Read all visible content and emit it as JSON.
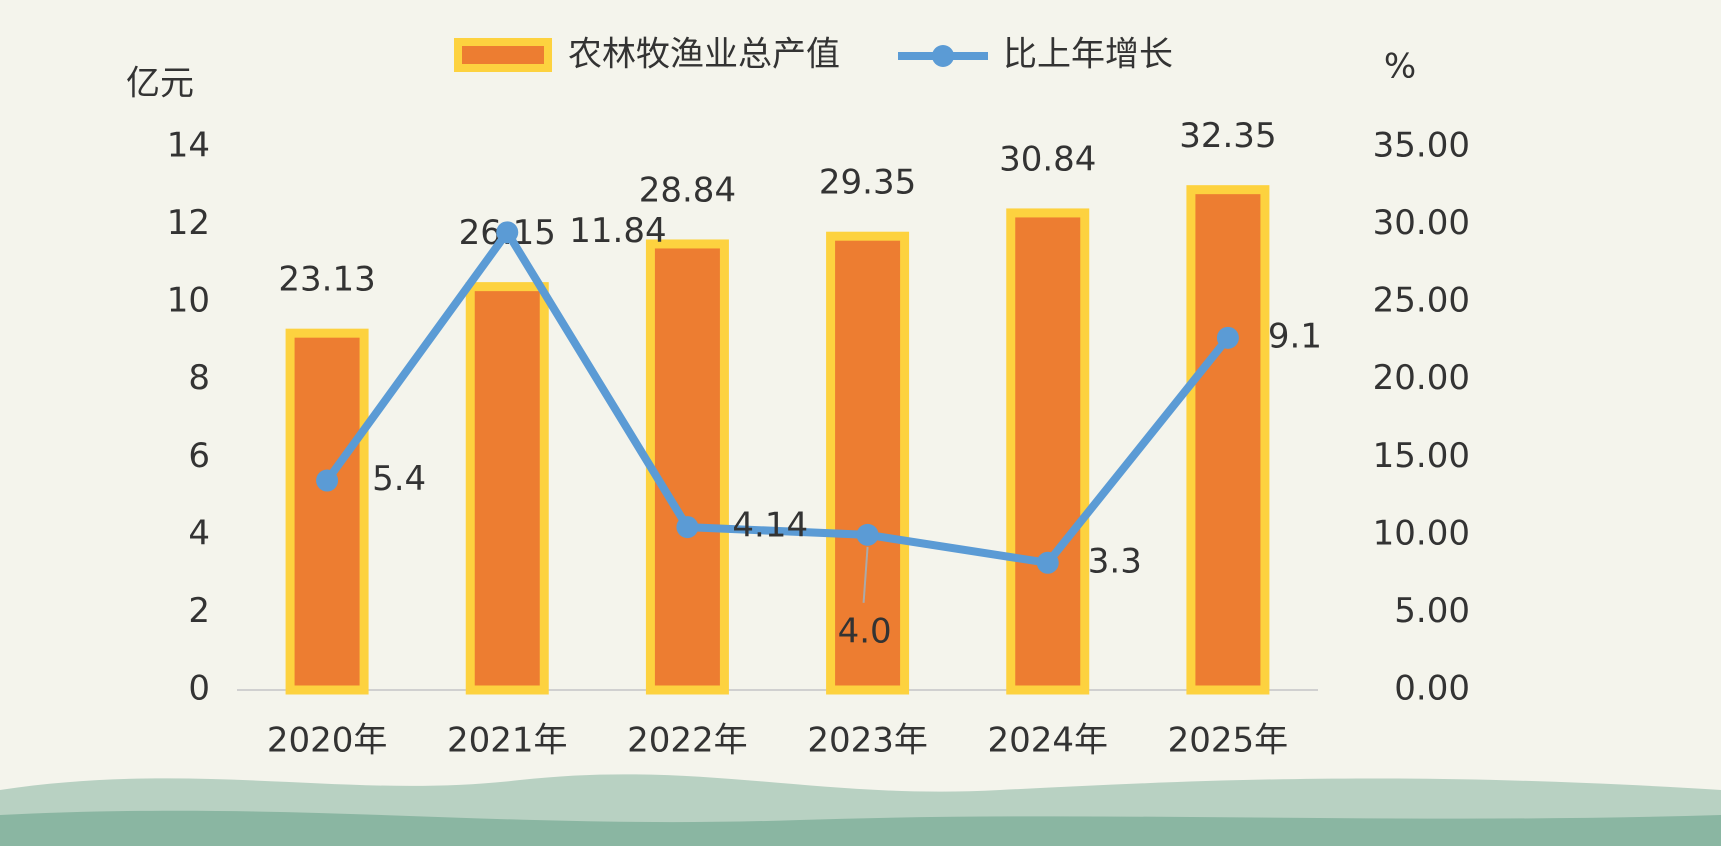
{
  "chart_data": {
    "type": "bar-line",
    "y_label": "亿元",
    "y2_label": "%",
    "categories": [
      "2020年",
      "2021年",
      "2022年",
      "2023年",
      "2024年",
      "2025年"
    ],
    "series": [
      {
        "name": "农林牧渔业总产值",
        "type": "bar",
        "color": "#ed7d31",
        "edge_color": "#fdd23f",
        "values": [
          9.2,
          10.4,
          11.5,
          11.7,
          12.3,
          12.9
        ],
        "annotations": [
          "23.13",
          "26.15",
          "28.84",
          "29.35",
          "30.84",
          "32.35"
        ]
      },
      {
        "name": "比上年增长",
        "type": "line",
        "axis": "y2",
        "color": "#5b9bd5",
        "values": [
          13.5,
          29.5,
          10.5,
          10.0,
          8.2,
          22.7
        ],
        "annotations": [
          "5.4",
          "11.84",
          "4.14",
          "4.0",
          "3.3",
          "9.1"
        ]
      }
    ],
    "ylim": [
      0,
      14
    ],
    "yticks": [
      0,
      2,
      4,
      6,
      8,
      10,
      12,
      14
    ],
    "y2lim": [
      0,
      35
    ],
    "y2ticks": [
      {
        "value": 0,
        "label": "0.00"
      },
      {
        "value": 5,
        "label": "5.00"
      },
      {
        "value": 10,
        "label": "10.00"
      },
      {
        "value": 15,
        "label": "15.00"
      },
      {
        "value": 20,
        "label": "20.00"
      },
      {
        "value": 25,
        "label": "25.00"
      },
      {
        "value": 30,
        "label": "30.00"
      },
      {
        "value": 35,
        "label": "35.00"
      }
    ],
    "grid": false,
    "legend": "top"
  }
}
